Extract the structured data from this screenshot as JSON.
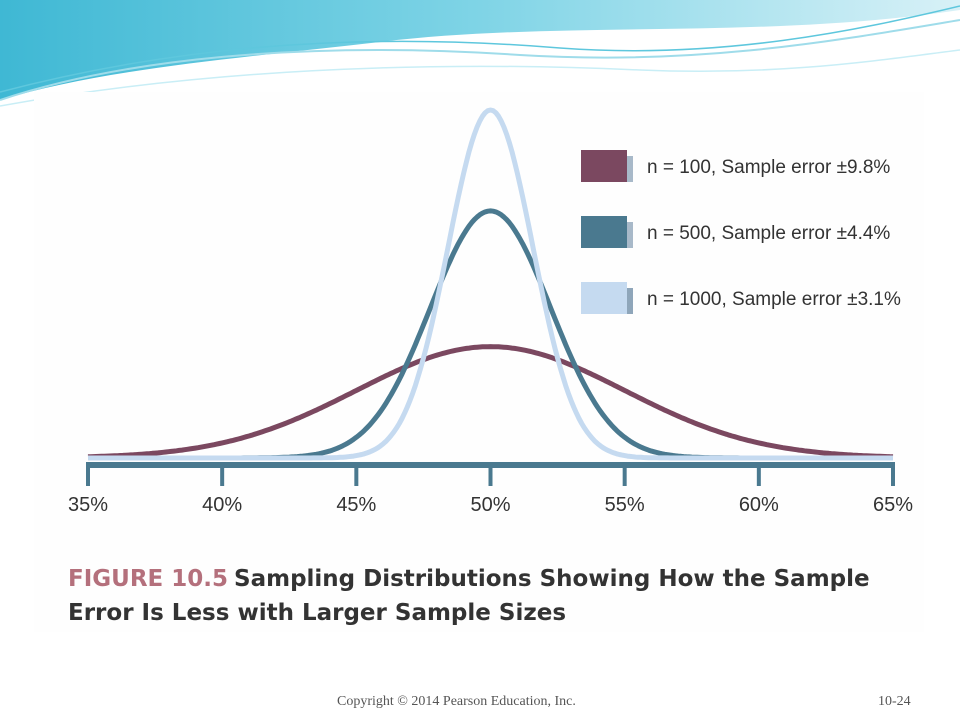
{
  "chart_data": {
    "type": "line",
    "x_axis": {
      "ticks": [
        35,
        40,
        45,
        50,
        55,
        60,
        65
      ],
      "tick_labels": [
        "35%",
        "40%",
        "45%",
        "50%",
        "55%",
        "60%",
        "65%"
      ],
      "range": [
        35,
        65
      ]
    },
    "grid": false,
    "legend_placement": "top-right",
    "series": [
      {
        "name": "n = 100, Sample error ±9.8%",
        "mean": 50,
        "sample_error": 9.8,
        "relative_peak": 0.32,
        "color": "#7b4860",
        "light_edge": "#a8b9c9"
      },
      {
        "name": "n = 500, Sample error  ±4.4%",
        "mean": 50,
        "sample_error": 4.4,
        "relative_peak": 0.71,
        "color": "#4a798f",
        "light_edge": "#a8b9c9"
      },
      {
        "name": "n = 1000, Sample error ±3.1%",
        "mean": 50,
        "sample_error": 3.1,
        "relative_peak": 1.0,
        "color": "#c5daf0",
        "light_edge": "#8fa6ba"
      }
    ],
    "axis_color": "#4a798f"
  },
  "caption": {
    "figure_number": "FIGURE 10.5",
    "title": "Sampling Distributions Showing How the Sample Error Is Less with Larger Sample Sizes"
  },
  "footer": {
    "copyright": "Copyright © 2014 Pearson Education, Inc.",
    "page": "10-24"
  },
  "colors": {
    "header_wave_dark": "#4cc3d9",
    "header_wave_light": "#bfeaf3",
    "caption_accent": "#b4707c"
  }
}
